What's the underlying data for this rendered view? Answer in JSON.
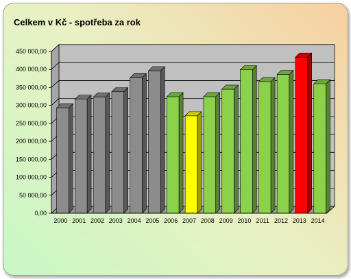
{
  "chart_data": {
    "type": "bar",
    "title": "Celkem v Kč - spotřeba za rok",
    "xlabel": "",
    "ylabel": "",
    "categories": [
      "2000",
      "2001",
      "2002",
      "2003",
      "2004",
      "2005",
      "2006",
      "2007",
      "2008",
      "2009",
      "2010",
      "2011",
      "2012",
      "2013",
      "2014"
    ],
    "values": [
      293000,
      317000,
      323000,
      338000,
      377000,
      396000,
      324000,
      271000,
      324000,
      345000,
      399000,
      366000,
      386000,
      434000,
      360000
    ],
    "bar_colors": [
      "#8c8c8c",
      "#8c8c8c",
      "#8c8c8c",
      "#8c8c8c",
      "#8c8c8c",
      "#8c8c8c",
      "#8cd14a",
      "#ffff00",
      "#8cd14a",
      "#8cd14a",
      "#8cd14a",
      "#8cd14a",
      "#8cd14a",
      "#ff0000",
      "#8cd14a"
    ],
    "ylim": [
      0,
      450000
    ],
    "yticks": [
      0,
      50000,
      100000,
      150000,
      200000,
      250000,
      300000,
      350000,
      400000,
      450000
    ],
    "ytick_labels": [
      "0,00",
      "50 000,00",
      "100 000,00",
      "150 000,00",
      "200 000,00",
      "250 000,00",
      "300 000,00",
      "350 000,00",
      "400 000,00",
      "450 000,00"
    ],
    "grid": true,
    "legend": "none",
    "style": "3d-bar"
  }
}
